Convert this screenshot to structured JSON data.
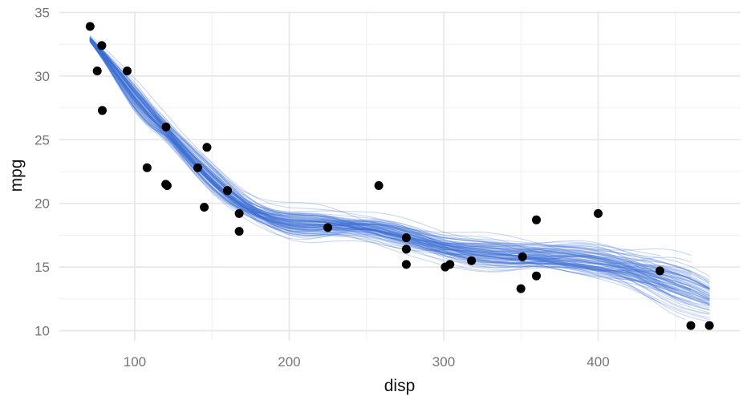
{
  "chart_data": {
    "type": "scatter",
    "title": "",
    "xlabel": "disp",
    "ylabel": "mpg",
    "xlim": [
      51.2,
      492.0
    ],
    "ylim": [
      9.225,
      35.075
    ],
    "x_ticks": [
      100,
      200,
      300,
      400
    ],
    "y_ticks": [
      10,
      15,
      20,
      25,
      30,
      35
    ],
    "x_minor_ticks": [
      150,
      250,
      350,
      450
    ],
    "y_minor_ticks": [
      12.5,
      17.5,
      22.5,
      27.5,
      32.5
    ],
    "grid": true,
    "legend": false,
    "theme": "minimal-white",
    "points": [
      [
        160.0,
        21.0
      ],
      [
        160.0,
        21.0
      ],
      [
        108.0,
        22.8
      ],
      [
        258.0,
        21.4
      ],
      [
        360.0,
        18.7
      ],
      [
        225.0,
        18.1
      ],
      [
        360.0,
        14.3
      ],
      [
        146.7,
        24.4
      ],
      [
        140.8,
        22.8
      ],
      [
        167.6,
        19.2
      ],
      [
        167.6,
        17.8
      ],
      [
        275.8,
        16.4
      ],
      [
        275.8,
        17.3
      ],
      [
        275.8,
        15.2
      ],
      [
        472.0,
        10.4
      ],
      [
        460.0,
        10.4
      ],
      [
        440.0,
        14.7
      ],
      [
        78.7,
        32.4
      ],
      [
        75.7,
        30.4
      ],
      [
        71.1,
        33.9
      ],
      [
        120.1,
        21.5
      ],
      [
        318.0,
        15.5
      ],
      [
        304.0,
        15.2
      ],
      [
        350.0,
        13.3
      ],
      [
        400.0,
        19.2
      ],
      [
        79.0,
        27.3
      ],
      [
        120.3,
        26.0
      ],
      [
        95.1,
        30.4
      ],
      [
        351.0,
        15.8
      ],
      [
        145.0,
        19.7
      ],
      [
        301.0,
        15.0
      ],
      [
        121.0,
        21.4
      ]
    ],
    "ensemble": {
      "description": "bootstrap smooth fit draws of mpg ~ disp",
      "n_lines": 100,
      "color": "#3E6ED5",
      "opacity": 0.28,
      "line_width": 1.1,
      "x_start_values": [
        71.1,
        75.7,
        79.0
      ],
      "x_end_values": [
        472,
        460,
        440,
        425
      ],
      "mean_curve": {
        "disp": [
          71,
          80,
          90,
          100,
          110,
          120,
          130,
          140,
          150,
          160,
          170,
          180,
          190,
          200,
          212,
          225,
          240,
          255,
          270,
          285,
          300,
          315,
          330,
          345,
          360,
          375,
          390,
          405,
          420,
          435,
          450,
          460,
          472
        ],
        "mpg": [
          32.9,
          31.6,
          30.0,
          28.4,
          27.0,
          25.8,
          24.4,
          23.1,
          21.9,
          20.8,
          19.9,
          19.2,
          18.7,
          18.4,
          18.3,
          18.3,
          18.2,
          18.0,
          17.6,
          17.1,
          16.6,
          16.3,
          16.1,
          15.95,
          15.85,
          15.7,
          15.5,
          15.2,
          14.8,
          14.3,
          13.7,
          13.3,
          12.7
        ]
      }
    },
    "colors": {
      "point": "#000000",
      "grid_major": "#E7E7E7",
      "grid_minor": "#F0F0F0",
      "tick_text": "#757575",
      "axis_title": "#111111",
      "background": "#FFFFFF"
    }
  }
}
